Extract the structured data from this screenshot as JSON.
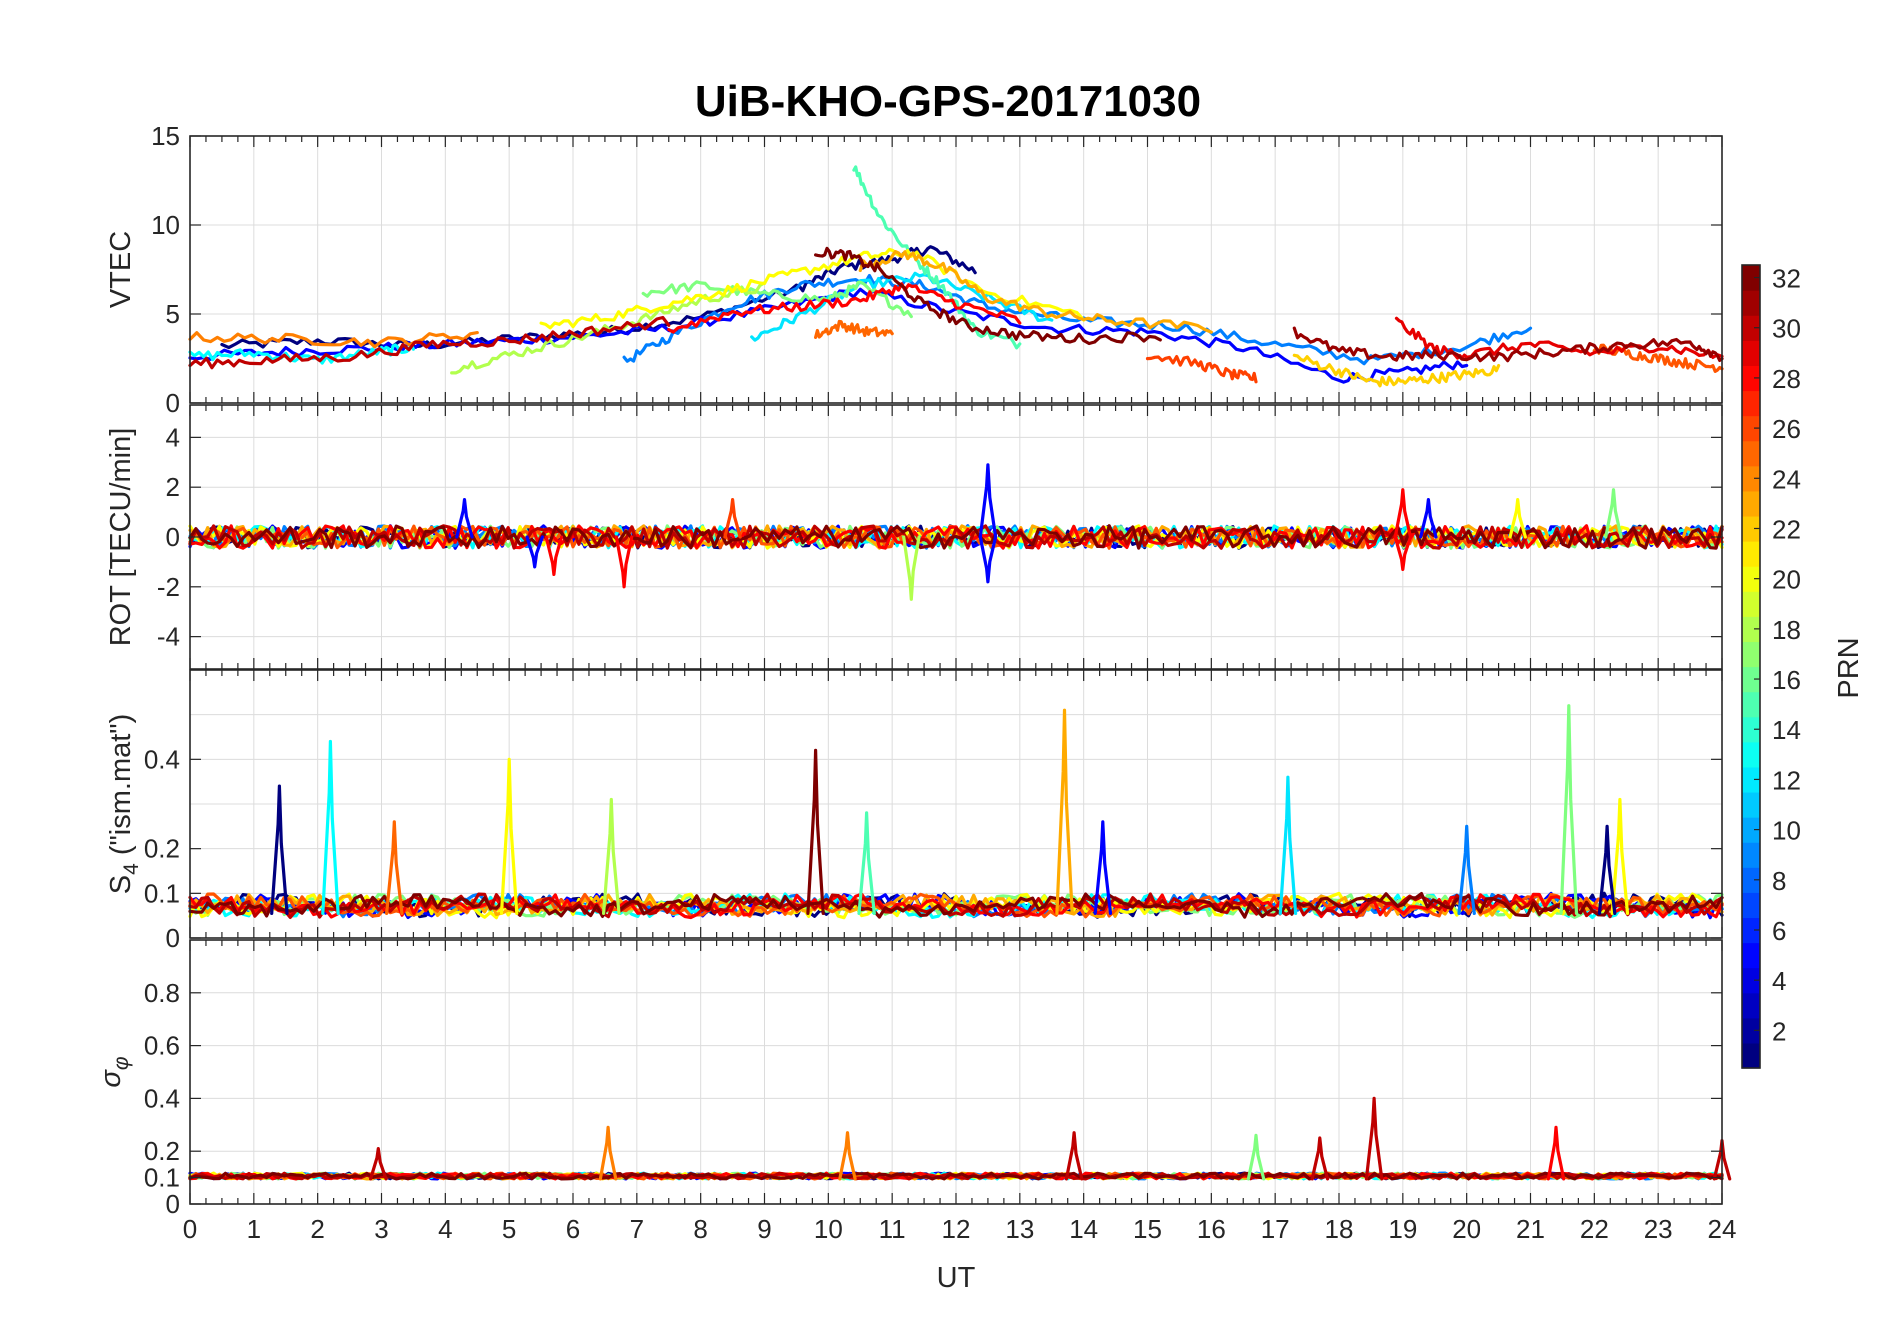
{
  "figure": {
    "title": "UiB-KHO-GPS-20171030",
    "xlabel": "UT"
  },
  "colorbar": {
    "label": "PRN",
    "min": 1,
    "max": 32,
    "ticks": [
      "2",
      "4",
      "6",
      "8",
      "10",
      "12",
      "14",
      "16",
      "18",
      "20",
      "22",
      "24",
      "26",
      "28",
      "30",
      "32"
    ],
    "colormap": "jet"
  },
  "chart_data": [
    {
      "type": "line",
      "panel": "VTEC",
      "ylabel": "VTEC",
      "xlim": [
        0,
        24
      ],
      "ylim": [
        0,
        15
      ],
      "xticks": [
        "",
        "",
        "",
        "",
        "",
        "",
        "",
        "",
        "",
        "",
        "",
        "",
        "",
        "",
        "",
        "",
        "",
        "",
        "",
        "",
        "",
        "",
        "",
        "",
        ""
      ],
      "yticks": [
        "0",
        "5",
        "10",
        "15"
      ],
      "ytick_values": [
        0,
        5,
        10,
        15
      ],
      "grid": true,
      "series": [
        {
          "color": "#00007f",
          "x": [
            0.5,
            2,
            3.5,
            5,
            6.5,
            8,
            9.5,
            10.2,
            11,
            11.6,
            12.3
          ],
          "y": [
            3.2,
            3.5,
            3.2,
            3.6,
            4,
            4.8,
            6.4,
            7.6,
            8.1,
            8.7,
            7.4
          ]
        },
        {
          "color": "#0000ff",
          "x": [
            0,
            1.5,
            3,
            4.5,
            6,
            7.5,
            9,
            10.5,
            12,
            13.5,
            15,
            16.5,
            18,
            19,
            20
          ],
          "y": [
            2.6,
            2.9,
            3.1,
            3.4,
            3.7,
            4.2,
            5.2,
            6.3,
            5.1,
            4.2,
            4,
            3.1,
            1.4,
            1.7,
            2.3
          ]
        },
        {
          "color": "#007fff",
          "x": [
            6.8,
            7.5,
            8.5,
            9.5,
            10.5,
            11.5,
            12.5,
            14,
            15.5,
            17,
            18.5,
            20,
            21
          ],
          "y": [
            2.3,
            3.7,
            5.5,
            6.6,
            7,
            6.6,
            5.4,
            4.6,
            4.3,
            3.3,
            2.4,
            3.2,
            4.3
          ]
        },
        {
          "color": "#00ffff",
          "x": [
            0,
            1,
            2,
            3,
            3.5
          ],
          "y": [
            2.6,
            2.8,
            2.4,
            2.9,
            3.1
          ]
        },
        {
          "color": "#00e5ff",
          "x": [
            8.8,
            9.5,
            10.5,
            11.5,
            12.5,
            13.5
          ],
          "y": [
            3.6,
            4.8,
            6.6,
            7.1,
            5.9,
            4.6
          ]
        },
        {
          "color": "#7fff7f",
          "x": [
            7.1,
            8,
            9,
            10,
            10.5,
            11.3
          ],
          "y": [
            6.2,
            6.6,
            6.1,
            5.8,
            6.6,
            5.0
          ]
        },
        {
          "color": "#4dffb2",
          "x": [
            10.4,
            10.8,
            11.3,
            11.8,
            12.3,
            13
          ],
          "y": [
            13.3,
            10.5,
            8.3,
            6.5,
            4.1,
            3.3
          ]
        },
        {
          "color": "#b2ff4d",
          "x": [
            4.1,
            5,
            6,
            7,
            8,
            9
          ],
          "y": [
            1.9,
            2.7,
            3.6,
            4.6,
            5.8,
            6.5
          ]
        },
        {
          "color": "#ffff00",
          "x": [
            5.5,
            6.5,
            7.5,
            8.5,
            9.5,
            10.5,
            11.3,
            12.5,
            14
          ],
          "y": [
            4.3,
            4.8,
            5.6,
            6.4,
            7.3,
            8.2,
            8.5,
            6.2,
            4.9
          ]
        },
        {
          "color": "#ffd000",
          "x": [
            17.3,
            18,
            18.5,
            19,
            19.5,
            20,
            20.5
          ],
          "y": [
            2.6,
            1.8,
            1.2,
            1.2,
            1.4,
            1.6,
            1.9
          ]
        },
        {
          "color": "#ffaa00",
          "x": [
            10.5,
            11.2,
            11.8,
            12.5,
            13.5,
            14.5,
            16
          ],
          "y": [
            7.7,
            8.4,
            7.6,
            5.9,
            5.0,
            4.6,
            4.2
          ]
        },
        {
          "color": "#ff7f00",
          "x": [
            0,
            1.5,
            3,
            4.5
          ],
          "y": [
            3.7,
            3.6,
            3.4,
            3.9
          ]
        },
        {
          "color": "#ff6600",
          "x": [
            9.8,
            10.2,
            10.6,
            11
          ],
          "y": [
            3.8,
            4.4,
            4.0,
            3.9
          ]
        },
        {
          "color": "#ff5500",
          "x": [
            22,
            22.5,
            23,
            23.5,
            24
          ],
          "y": [
            3.1,
            2.8,
            2.5,
            2.2,
            2.0
          ]
        },
        {
          "color": "#ff4000",
          "x": [
            15,
            15.8,
            16.3,
            16.7
          ],
          "y": [
            2.7,
            2.2,
            1.6,
            1.4
          ]
        },
        {
          "color": "#ff0000",
          "x": [
            7.5,
            8.5,
            9.5,
            10.5,
            11.2,
            12,
            13
          ],
          "y": [
            4.1,
            5.1,
            5.4,
            5.8,
            6.6,
            5.6,
            4.6
          ]
        },
        {
          "color": "#e60000",
          "x": [
            18.9,
            19.5,
            20,
            21,
            22,
            23,
            24
          ],
          "y": [
            4.6,
            3.0,
            2.7,
            3.3,
            2.8,
            3.2,
            2.6
          ]
        },
        {
          "color": "#bf0000",
          "x": [
            0,
            1.2,
            2.5,
            3.8,
            5,
            6.2,
            7.5
          ],
          "y": [
            2.2,
            2.4,
            2.6,
            3.3,
            3.5,
            4.0,
            4.6
          ]
        },
        {
          "color": "#7f0000",
          "x": [
            9.8,
            10.3,
            10.8,
            11.5,
            12.2,
            13,
            14,
            15.2
          ],
          "y": [
            8.5,
            8.3,
            7.5,
            5.5,
            4.3,
            3.8,
            3.6,
            3.8
          ]
        },
        {
          "color": "#990000",
          "x": [
            17.3,
            18,
            18.8,
            19.5,
            20.5,
            21.5,
            22.5,
            23.5,
            24
          ],
          "y": [
            4.0,
            2.9,
            2.6,
            2.7,
            2.6,
            2.9,
            3.3,
            3.4,
            2.6
          ]
        }
      ]
    },
    {
      "type": "line",
      "panel": "ROT",
      "ylabel": "ROT [TECU/min]",
      "xlim": [
        0,
        24
      ],
      "ylim": [
        -5.3,
        5.3
      ],
      "xticks": [
        "",
        "",
        "",
        "",
        "",
        "",
        "",
        "",
        "",
        "",
        "",
        "",
        "",
        "",
        "",
        "",
        "",
        "",
        "",
        "",
        "",
        "",
        "",
        "",
        ""
      ],
      "yticks": [
        "-4",
        "-2",
        "0",
        "2",
        "4"
      ],
      "ytick_values": [
        -4,
        -2,
        0,
        2,
        4
      ],
      "grid": true,
      "spikes": [
        {
          "color": "#0000ff",
          "x": 4.3,
          "y": 1.5
        },
        {
          "color": "#0000ff",
          "x": 5.4,
          "y": -1.2
        },
        {
          "color": "#ff0000",
          "x": 5.7,
          "y": -1.5
        },
        {
          "color": "#ff0000",
          "x": 6.8,
          "y": -2.0
        },
        {
          "color": "#ff4000",
          "x": 8.5,
          "y": 1.5
        },
        {
          "color": "#b2ff4d",
          "x": 11.3,
          "y": -2.5
        },
        {
          "color": "#0000ff",
          "x": 12.5,
          "y": 2.9
        },
        {
          "color": "#0000ff",
          "x": 12.5,
          "y": -1.8
        },
        {
          "color": "#ff0000",
          "x": 19.0,
          "y": 1.9
        },
        {
          "color": "#ff0000",
          "x": 19.0,
          "y": -1.3
        },
        {
          "color": "#0000ff",
          "x": 19.4,
          "y": 1.5
        },
        {
          "color": "#ffff00",
          "x": 20.8,
          "y": 1.5
        },
        {
          "color": "#7fff7f",
          "x": 22.3,
          "y": 1.9
        }
      ]
    },
    {
      "type": "line",
      "panel": "S4",
      "ylabel": "S4 (\"ism.mat\")",
      "ylabel_main": "S",
      "ylabel_sub": "4",
      "ylabel_rest": " (\"ism.mat\")",
      "xlim": [
        0,
        24
      ],
      "ylim": [
        0,
        0.6
      ],
      "xticks": [
        "",
        "",
        "",
        "",
        "",
        "",
        "",
        "",
        "",
        "",
        "",
        "",
        "",
        "",
        "",
        "",
        "",
        "",
        "",
        "",
        "",
        "",
        "",
        "",
        ""
      ],
      "yticks": [
        "0",
        "0.1",
        "0.2",
        "0.4"
      ],
      "ytick_values": [
        0,
        0.1,
        0.2,
        0.4
      ],
      "grid": true,
      "spikes": [
        {
          "color": "#00007f",
          "x": 1.4,
          "y": 0.34
        },
        {
          "color": "#00ffff",
          "x": 2.2,
          "y": 0.44
        },
        {
          "color": "#ff6600",
          "x": 3.2,
          "y": 0.26
        },
        {
          "color": "#ffff00",
          "x": 5.0,
          "y": 0.4
        },
        {
          "color": "#b2ff4d",
          "x": 6.6,
          "y": 0.31
        },
        {
          "color": "#7f0000",
          "x": 9.8,
          "y": 0.42
        },
        {
          "color": "#4dffb2",
          "x": 10.6,
          "y": 0.28
        },
        {
          "color": "#ffaa00",
          "x": 13.7,
          "y": 0.51
        },
        {
          "color": "#0000ff",
          "x": 14.3,
          "y": 0.26
        },
        {
          "color": "#00e5ff",
          "x": 17.2,
          "y": 0.36
        },
        {
          "color": "#007fff",
          "x": 20.0,
          "y": 0.25
        },
        {
          "color": "#7fff7f",
          "x": 21.6,
          "y": 0.52
        },
        {
          "color": "#ffff00",
          "x": 22.4,
          "y": 0.31
        },
        {
          "color": "#00007f",
          "x": 22.2,
          "y": 0.25
        }
      ]
    },
    {
      "type": "line",
      "panel": "sigma_phi",
      "ylabel": "σφ",
      "ylabel_main": "σ",
      "ylabel_sub": "φ",
      "xlim": [
        0,
        24
      ],
      "ylim": [
        0,
        1
      ],
      "xticks": [
        "0",
        "1",
        "2",
        "3",
        "4",
        "5",
        "6",
        "7",
        "8",
        "9",
        "10",
        "11",
        "12",
        "13",
        "14",
        "15",
        "16",
        "17",
        "18",
        "19",
        "20",
        "21",
        "22",
        "23",
        "24"
      ],
      "yticks": [
        "0",
        "0.1",
        "0.2",
        "0.4",
        "0.6",
        "0.8"
      ],
      "ytick_values": [
        0,
        0.1,
        0.2,
        0.4,
        0.6,
        0.8
      ],
      "grid": true,
      "spikes": [
        {
          "color": "#bf0000",
          "x": 2.95,
          "y": 0.21
        },
        {
          "color": "#ff7f00",
          "x": 6.55,
          "y": 0.29
        },
        {
          "color": "#ff7f00",
          "x": 10.3,
          "y": 0.27
        },
        {
          "color": "#bf0000",
          "x": 13.85,
          "y": 0.27
        },
        {
          "color": "#7fff7f",
          "x": 16.7,
          "y": 0.26
        },
        {
          "color": "#bf0000",
          "x": 17.7,
          "y": 0.25
        },
        {
          "color": "#bf0000",
          "x": 18.55,
          "y": 0.4
        },
        {
          "color": "#ff0000",
          "x": 21.4,
          "y": 0.29
        },
        {
          "color": "#bf0000",
          "x": 24.0,
          "y": 0.24
        }
      ]
    }
  ]
}
